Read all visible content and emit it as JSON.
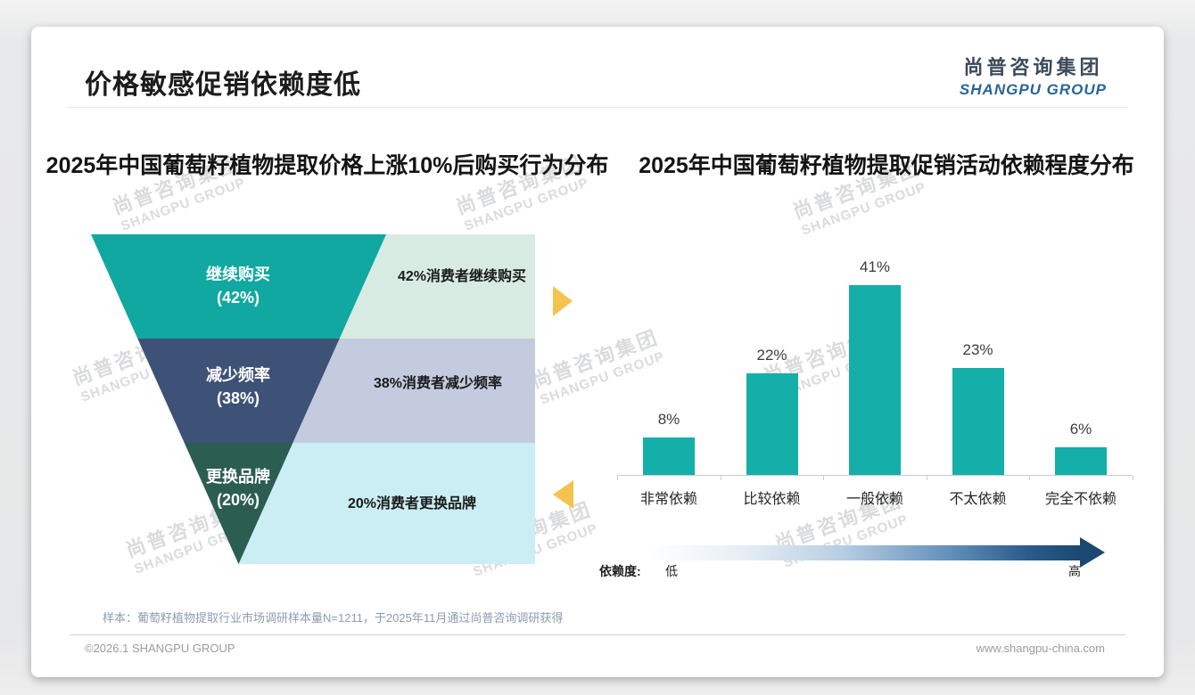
{
  "page": {
    "title": "价格敏感促销依赖度低",
    "logo": {
      "cn": "尚普咨询集团",
      "en": "SHANGPU GROUP"
    },
    "watermark": {
      "cn": "尚普咨询集团",
      "en": "SHANGPU GROUP"
    },
    "footnote": "样本：葡萄籽植物提取行业市场调研样本量N=1211，于2025年11月通过尚普咨询调研获得",
    "footer_left": "©2026.1 SHANGPU GROUP",
    "footer_right": "www.shangpu-china.com"
  },
  "chart_data": [
    {
      "type": "funnel",
      "title": "2025年中国葡萄籽植物提取价格上涨10%后购买行为分布",
      "segments": [
        {
          "label": "继续购买",
          "pct": "(42%)",
          "value": 42,
          "annotation": "42%消费者继续购买",
          "color": "#10a8a0",
          "annotation_bg": "#d8ebe3"
        },
        {
          "label": "减少频率",
          "pct": "(38%)",
          "value": 38,
          "annotation": "38%消费者减少频率",
          "color": "#3e5278",
          "annotation_bg": "#c4cbdf"
        },
        {
          "label": "更换品牌",
          "pct": "(20%)",
          "value": 20,
          "annotation": "20%消费者更换品牌",
          "color": "#2b5d50",
          "annotation_bg": "#caeef3"
        }
      ],
      "arrow_color": "#f4c34d"
    },
    {
      "type": "bar",
      "title": "2025年中国葡萄籽植物提取促销活动依赖程度分布",
      "categories": [
        "非常依赖",
        "比较依赖",
        "一般依赖",
        "不太依赖",
        "完全不依赖"
      ],
      "values": [
        8,
        22,
        41,
        23,
        6
      ],
      "value_labels": [
        "8%",
        "22%",
        "41%",
        "23%",
        "6%"
      ],
      "bar_color": "#14afa8",
      "ylim": [
        0,
        45
      ],
      "grid": false,
      "legend_axis": {
        "label": "依赖度:",
        "low": "低",
        "high": "高"
      }
    }
  ]
}
